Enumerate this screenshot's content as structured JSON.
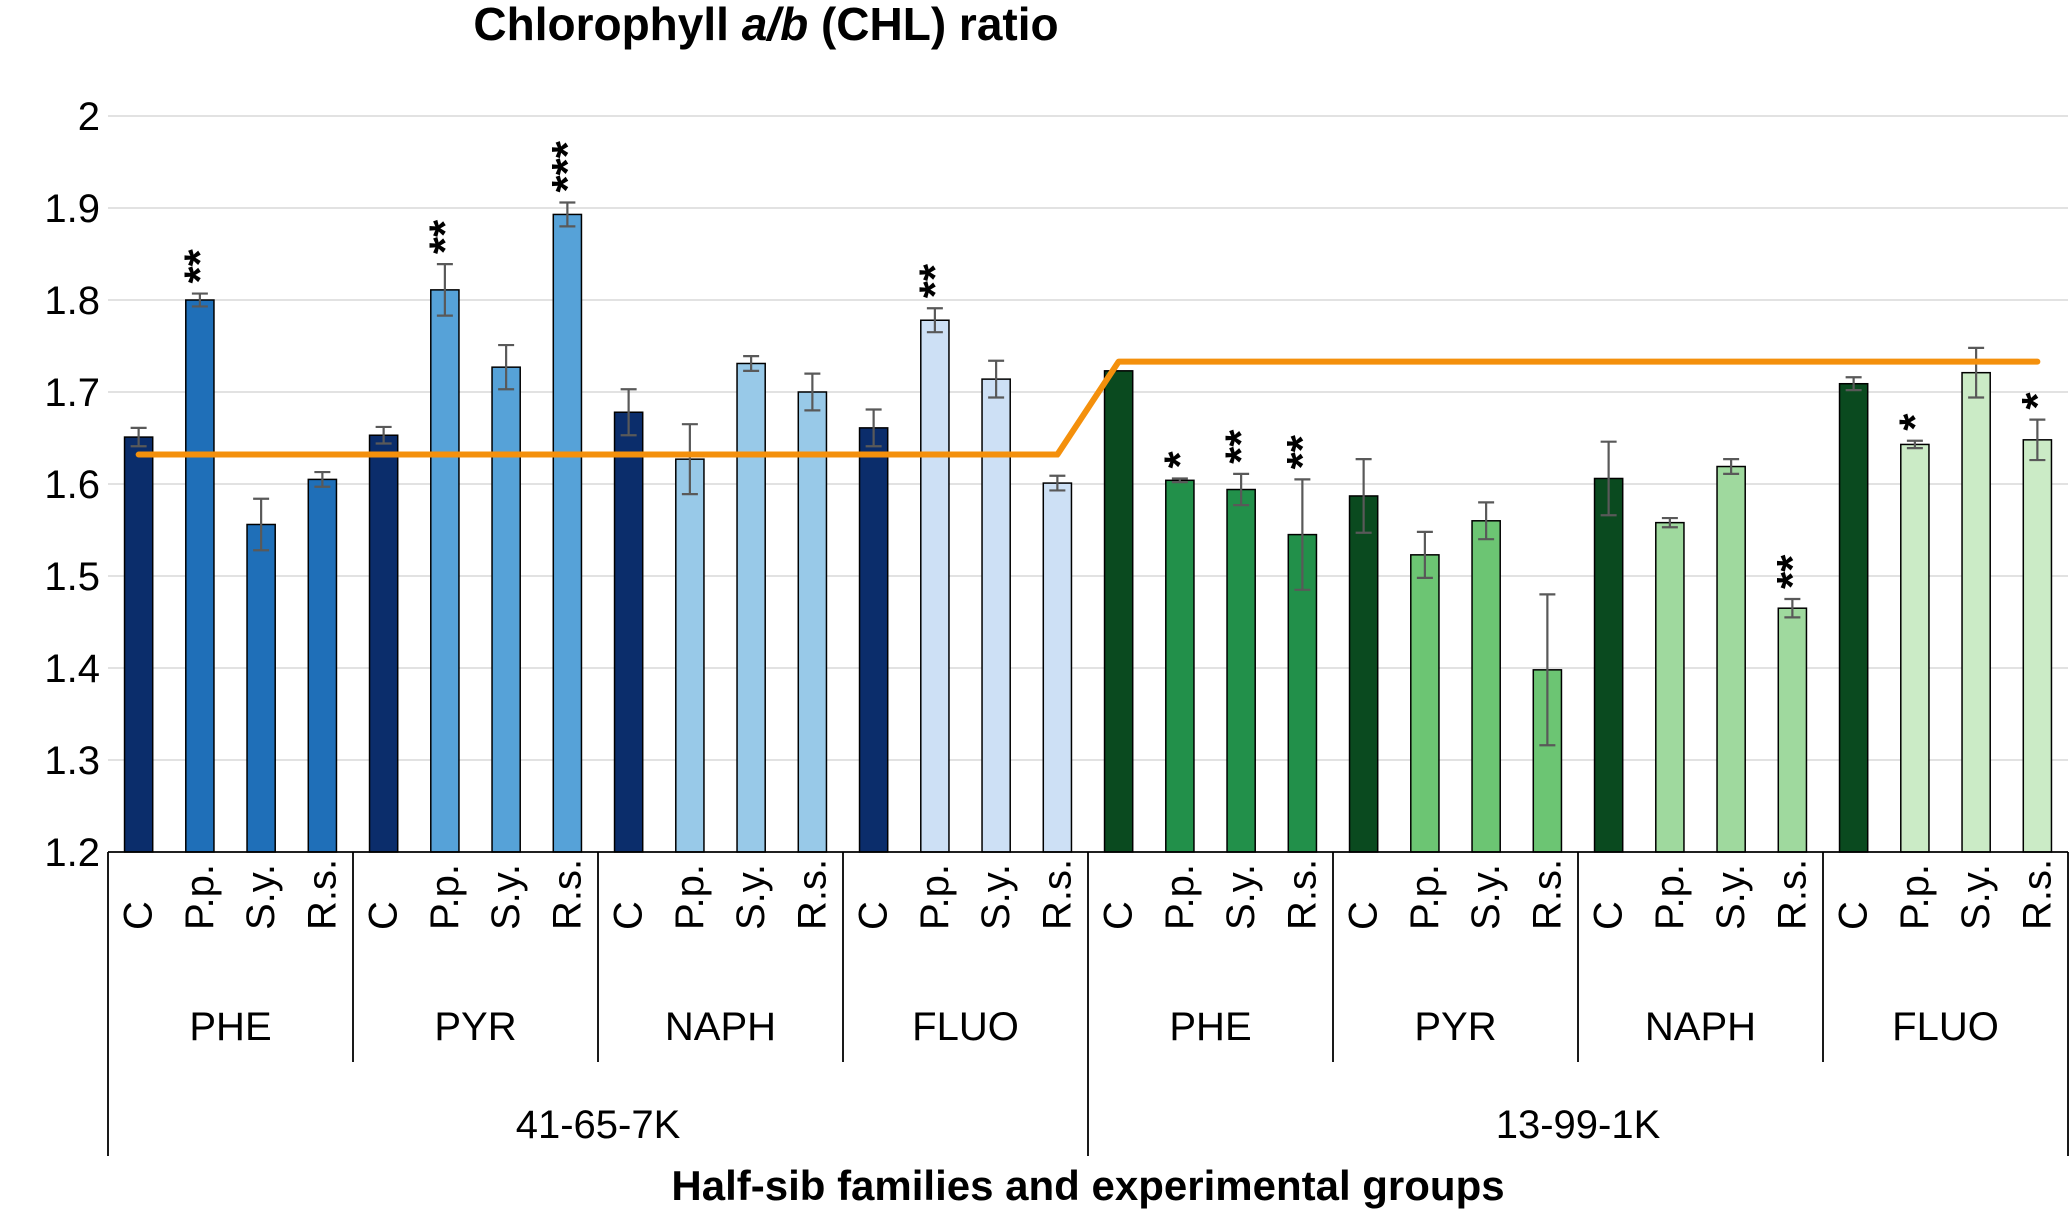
{
  "chart_data": {
    "type": "bar",
    "title_parts": [
      "Chlorophyll ",
      "a/b",
      " (CHL) ratio"
    ],
    "xlabel": "Half-sib families and experimental groups",
    "ylabel": "",
    "ylim": [
      1.2,
      2.0
    ],
    "yticks": [
      "1.2",
      "1.3",
      "1.4",
      "1.5",
      "1.6",
      "1.7",
      "1.8",
      "1.9",
      "2"
    ],
    "grid": true,
    "families": [
      {
        "name": "41-65-7K",
        "mean_line": 1.632,
        "mean_line_color": "#f4900c",
        "groups": [
          {
            "name": "PHE",
            "bars": [
              {
                "label": "C",
                "value": 1.651,
                "err": 0.01,
                "sig": "",
                "color": "#0b2d6b"
              },
              {
                "label": "P.p.",
                "value": 1.8,
                "err": 0.007,
                "sig": "**",
                "color": "#1f6fb8"
              },
              {
                "label": "S.y.",
                "value": 1.556,
                "err": 0.028,
                "sig": "",
                "color": "#1f6fb8"
              },
              {
                "label": "R.s.",
                "value": 1.605,
                "err": 0.008,
                "sig": "",
                "color": "#1f6fb8"
              }
            ]
          },
          {
            "name": "PYR",
            "bars": [
              {
                "label": "C",
                "value": 1.653,
                "err": 0.009,
                "sig": "",
                "color": "#0b2d6b"
              },
              {
                "label": "P.p.",
                "value": 1.811,
                "err": 0.028,
                "sig": "**",
                "color": "#56a2d8"
              },
              {
                "label": "S.y.",
                "value": 1.727,
                "err": 0.024,
                "sig": "",
                "color": "#56a2d8"
              },
              {
                "label": "R.s.",
                "value": 1.893,
                "err": 0.013,
                "sig": "***",
                "color": "#56a2d8"
              }
            ]
          },
          {
            "name": "NAPH",
            "bars": [
              {
                "label": "C",
                "value": 1.678,
                "err": 0.025,
                "sig": "",
                "color": "#0b2d6b"
              },
              {
                "label": "P.p.",
                "value": 1.627,
                "err": 0.038,
                "sig": "",
                "color": "#98c9e8"
              },
              {
                "label": "S.y.",
                "value": 1.731,
                "err": 0.008,
                "sig": "",
                "color": "#98c9e8"
              },
              {
                "label": "R.s.",
                "value": 1.7,
                "err": 0.02,
                "sig": "",
                "color": "#98c9e8"
              }
            ]
          },
          {
            "name": "FLUO",
            "bars": [
              {
                "label": "C",
                "value": 1.661,
                "err": 0.02,
                "sig": "",
                "color": "#0b2d6b"
              },
              {
                "label": "P.p.",
                "value": 1.778,
                "err": 0.013,
                "sig": "**",
                "color": "#cde0f5"
              },
              {
                "label": "S.y.",
                "value": 1.714,
                "err": 0.02,
                "sig": "",
                "color": "#cde0f5"
              },
              {
                "label": "R.s.",
                "value": 1.601,
                "err": 0.008,
                "sig": "",
                "color": "#cde0f5"
              }
            ]
          }
        ]
      },
      {
        "name": "13-99-1K",
        "mean_line": 1.733,
        "mean_line_color": "#f4900c",
        "groups": [
          {
            "name": "PHE",
            "bars": [
              {
                "label": "C",
                "value": 1.723,
                "err": 0.0,
                "sig": "",
                "color": "#0a4a1f"
              },
              {
                "label": "P.p.",
                "value": 1.604,
                "err": 0.002,
                "sig": "*",
                "color": "#22904a"
              },
              {
                "label": "S.y.",
                "value": 1.594,
                "err": 0.017,
                "sig": "**",
                "color": "#22904a"
              },
              {
                "label": "R.s.",
                "value": 1.545,
                "err": 0.06,
                "sig": "**",
                "color": "#22904a"
              }
            ]
          },
          {
            "name": "PYR",
            "bars": [
              {
                "label": "C",
                "value": 1.587,
                "err": 0.04,
                "sig": "",
                "color": "#0a4a1f"
              },
              {
                "label": "P.p.",
                "value": 1.523,
                "err": 0.025,
                "sig": "",
                "color": "#6cc573"
              },
              {
                "label": "S.y.",
                "value": 1.56,
                "err": 0.02,
                "sig": "",
                "color": "#6cc573"
              },
              {
                "label": "R.s.",
                "value": 1.398,
                "err": 0.082,
                "sig": "",
                "color": "#6cc573"
              }
            ]
          },
          {
            "name": "NAPH",
            "bars": [
              {
                "label": "C",
                "value": 1.606,
                "err": 0.04,
                "sig": "",
                "color": "#0a4a1f"
              },
              {
                "label": "P.p.",
                "value": 1.558,
                "err": 0.005,
                "sig": "",
                "color": "#9fd99e"
              },
              {
                "label": "S.y.",
                "value": 1.619,
                "err": 0.008,
                "sig": "",
                "color": "#9fd99e"
              },
              {
                "label": "R.s.",
                "value": 1.465,
                "err": 0.01,
                "sig": "**",
                "color": "#9fd99e"
              }
            ]
          },
          {
            "name": "FLUO",
            "bars": [
              {
                "label": "C",
                "value": 1.709,
                "err": 0.007,
                "sig": "",
                "color": "#0a4a1f"
              },
              {
                "label": "P.p.",
                "value": 1.643,
                "err": 0.004,
                "sig": "*",
                "color": "#cbebc6"
              },
              {
                "label": "S.y.",
                "value": 1.721,
                "err": 0.027,
                "sig": "",
                "color": "#cbebc6"
              },
              {
                "label": "R.s.",
                "value": 1.648,
                "err": 0.022,
                "sig": "*",
                "color": "#cbebc6"
              }
            ]
          }
        ]
      }
    ]
  }
}
